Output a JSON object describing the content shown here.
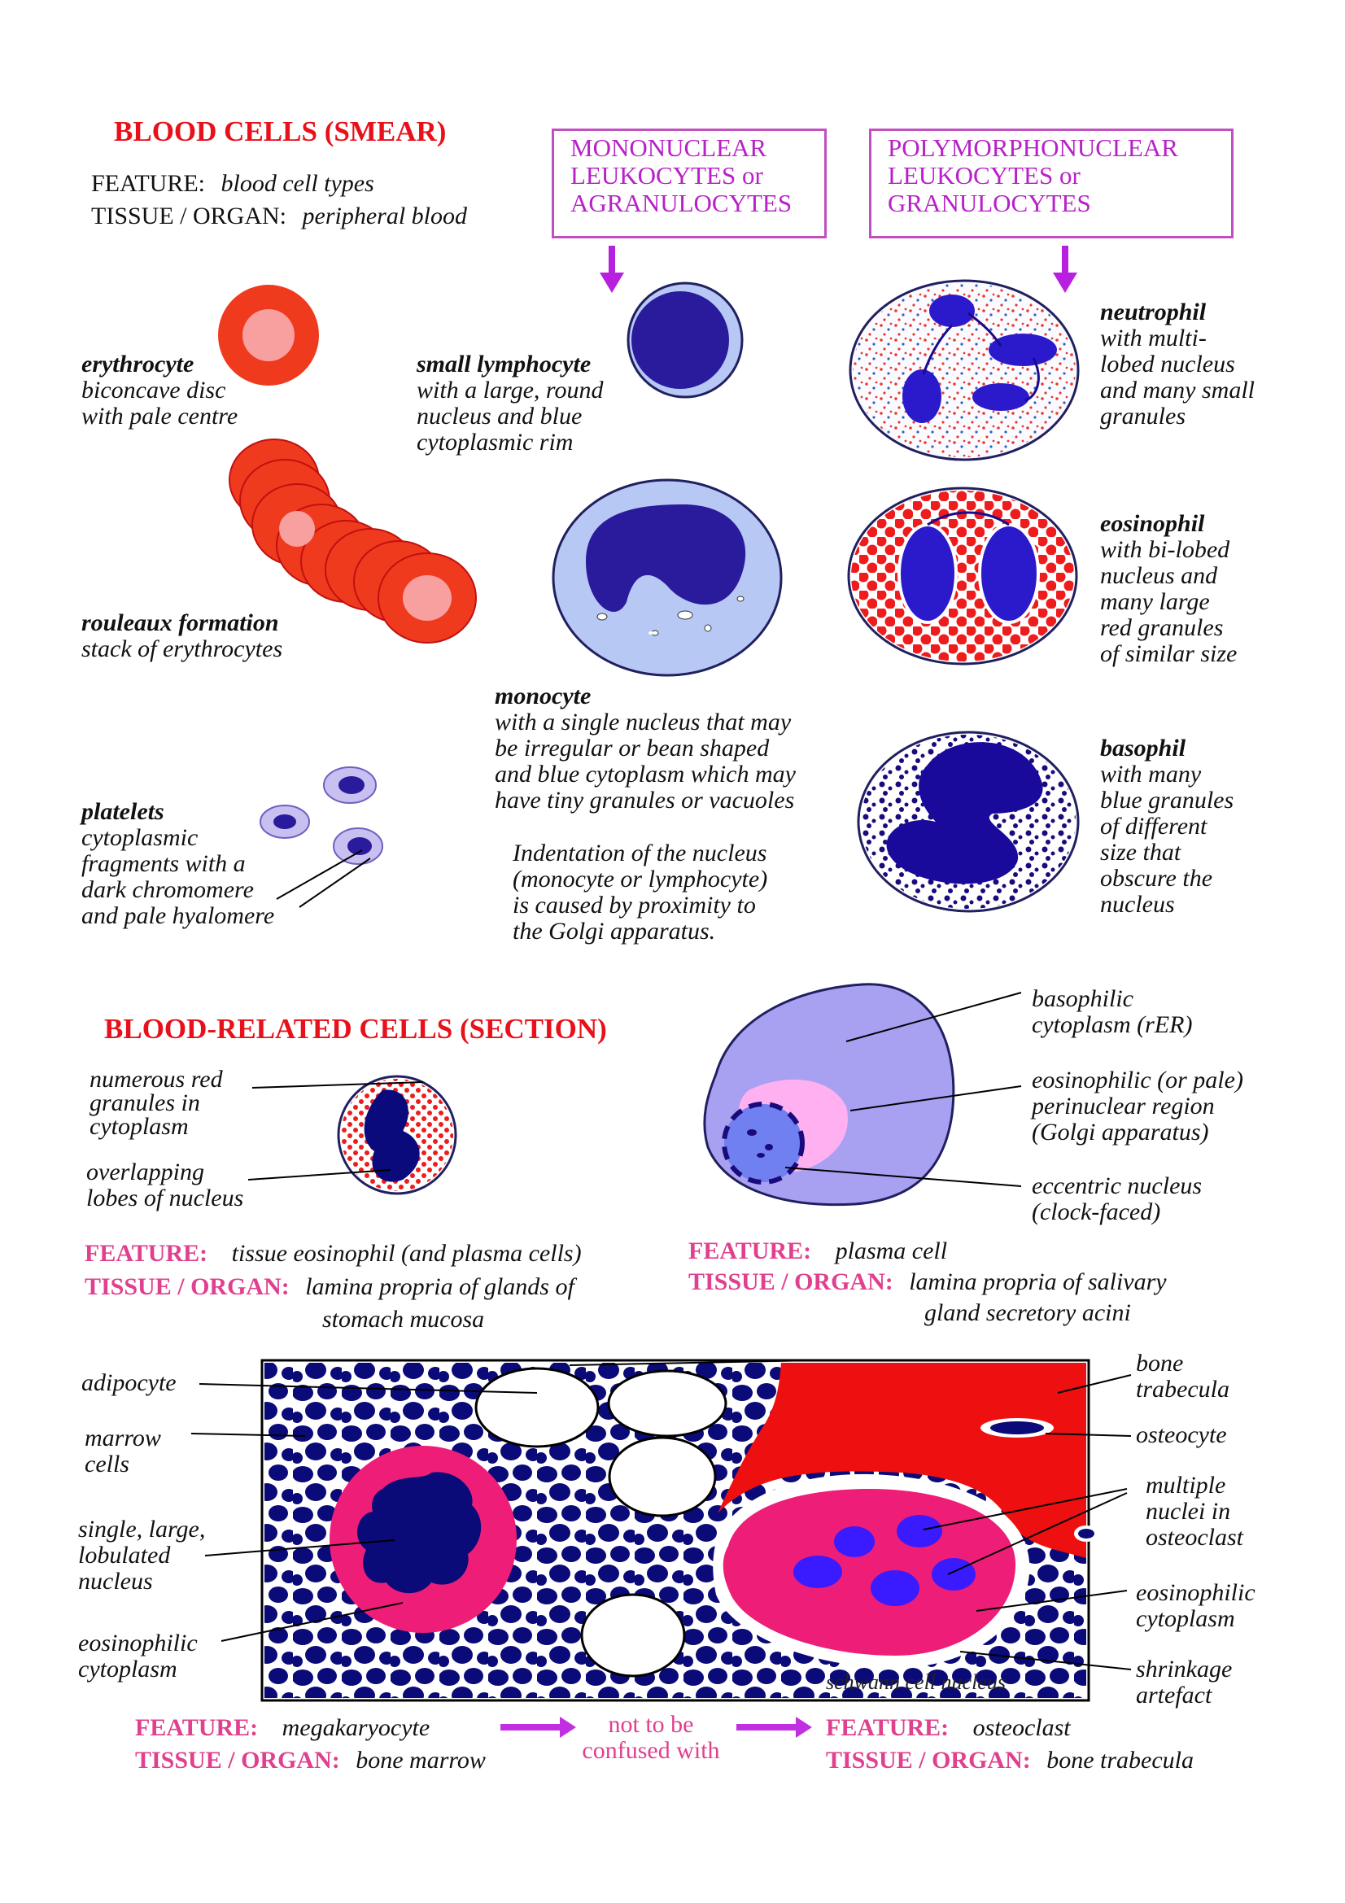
{
  "smear": {
    "title": "BLOOD CELLS  (SMEAR)",
    "feature_label": "FEATURE:",
    "feature_value": "blood cell types",
    "tissue_label": "TISSUE / ORGAN:",
    "tissue_value": "peripheral blood",
    "mono_box": [
      "MONONUCLEAR",
      "LEUKOCYTES or",
      "AGRANULOCYTES"
    ],
    "poly_box": [
      "POLYMORPHONUCLEAR",
      "LEUKOCYTES  or",
      "GRANULOCYTES"
    ],
    "erythrocyte": {
      "name": "erythrocyte",
      "desc": [
        "biconcave disc",
        "with pale centre"
      ]
    },
    "rouleaux": {
      "name": "rouleaux formation",
      "desc": [
        "stack of erythrocytes"
      ]
    },
    "platelets": {
      "name": "platelets",
      "desc": [
        "cytoplasmic",
        "fragments with a",
        "dark chromomere",
        "and pale hyalomere"
      ]
    },
    "lymphocyte": {
      "name": "small lymphocyte",
      "desc": [
        "with a large, round",
        "nucleus and blue",
        "cytoplasmic rim"
      ]
    },
    "monocyte": {
      "name": "monocyte",
      "desc": [
        "with a single nucleus that may",
        "be irregular or bean shaped",
        "and blue cytoplasm which may",
        "have tiny granules or vacuoles"
      ]
    },
    "indentation_note": [
      "Indentation of the nucleus",
      "(monocyte or lymphocyte)",
      "is caused by proximity to",
      "the Golgi apparatus."
    ],
    "neutrophil": {
      "name": "neutrophil",
      "desc": [
        "with multi-",
        "lobed nucleus",
        "and many small",
        "granules"
      ]
    },
    "eosinophil": {
      "name": "eosinophil",
      "desc": [
        "with bi-lobed",
        "nucleus and",
        "many large",
        "red granules",
        "of similar size"
      ]
    },
    "basophil": {
      "name": "basophil",
      "desc": [
        "with many",
        "blue granules",
        "of different",
        "size that",
        "obscure the",
        "nucleus"
      ]
    }
  },
  "section": {
    "title": "BLOOD-RELATED CELLS  (SECTION)",
    "eos_labels": {
      "granules": [
        "numerous red",
        "granules in",
        "cytoplasm"
      ],
      "lobes": [
        "overlapping",
        "lobes of nucleus"
      ]
    },
    "eos_feature_label": "FEATURE:",
    "eos_feature_value": "tissue eosinophil (and plasma cells)",
    "eos_tissue_label": "TISSUE / ORGAN:",
    "eos_tissue_value": [
      "lamina propria of glands of",
      "stomach mucosa"
    ],
    "plasma_labels": {
      "basophilic": [
        "basophilic",
        "cytoplasm  (rER)"
      ],
      "perinuclear": [
        "eosinophilic (or pale)",
        "perinuclear region",
        "(Golgi apparatus)"
      ],
      "nucleus": [
        "eccentric nucleus",
        "(clock-faced)"
      ]
    },
    "plasma_feature_label": "FEATURE:",
    "plasma_feature_value": "plasma cell",
    "plasma_tissue_label": "TISSUE / ORGAN:",
    "plasma_tissue_value": [
      "lamina propria of salivary",
      "gland secretory acini"
    ]
  },
  "marrow": {
    "left_labels": {
      "adipocyte": "adipocyte",
      "marrow_cells": [
        "marrow",
        "cells"
      ],
      "nucleus": [
        "single, large,",
        "lobulated",
        "nucleus"
      ],
      "cytoplasm": [
        "eosinophilic",
        "cytoplasm"
      ]
    },
    "right_labels": {
      "trabecula": [
        "bone",
        "trabecula"
      ],
      "osteocyte": "osteocyte",
      "nuclei": [
        "multiple",
        "nuclei in",
        "osteoclast"
      ],
      "cytoplasm": [
        "eosinophilic",
        "cytoplasm"
      ],
      "shrinkage": [
        "shrinkage",
        "artefact"
      ]
    },
    "overlay_text": "schwann cell nucleus",
    "mega_feature_label": "FEATURE:",
    "mega_feature_value": "megakaryocyte",
    "mega_tissue_label": "TISSUE / ORGAN:",
    "mega_tissue_value": "bone marrow",
    "confuse_text": [
      "not to be",
      "confused with"
    ],
    "osteo_feature_label": "FEATURE:",
    "osteo_feature_value": "osteoclast",
    "osteo_tissue_label": "TISSUE / ORGAN:",
    "osteo_tissue_value": "bone trabecula"
  },
  "colors": {
    "heading_red": "#e8101a",
    "magenta_label": "#e0408e",
    "box_purple": "#b820c8",
    "nucleus_navy": "#1a0a8c",
    "erythrocyte_red": "#f03a1e",
    "arrow_magenta": "#c030e0"
  }
}
